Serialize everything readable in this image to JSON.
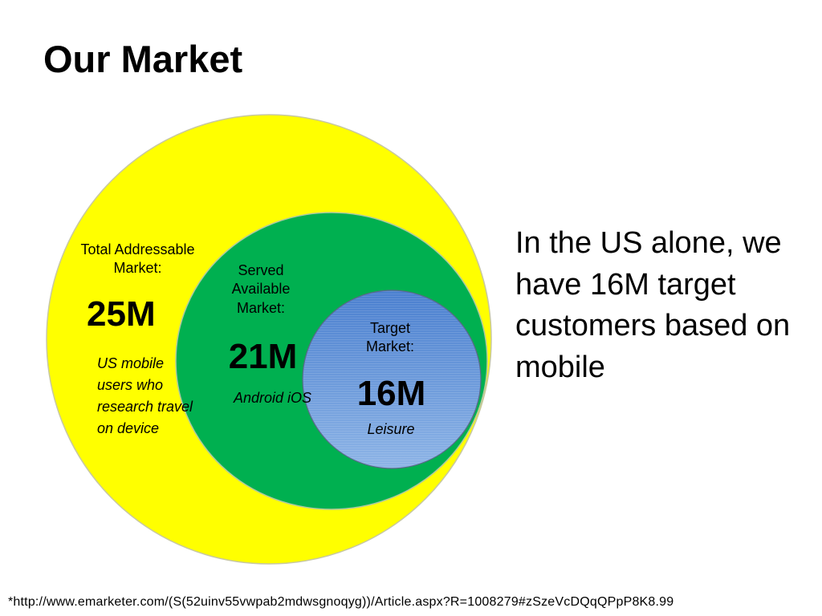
{
  "title": "Our Market",
  "colors": {
    "total_market_fill": "#ffff00",
    "served_market_fill": "#00b050",
    "target_market_fill": "#5b8fd6"
  },
  "diagram": {
    "total": {
      "caption": "Total Addressable Market:",
      "value": "25M",
      "description": "US mobile users who research travel on device"
    },
    "served": {
      "caption": "Served Available Market:",
      "value": "21M",
      "description": "Android iOS"
    },
    "target": {
      "caption": "Target Market:",
      "value": "16M",
      "description": "Leisure"
    }
  },
  "summary": "In the US alone, we have 16M target customers based on mobile",
  "footnote": "*http://www.emarketer.com/(S(52uinv55vwpab2mdwsgnoqyg))/Article.aspx?R=1008279#zSzeVcDQqQPpP8K8.99"
}
